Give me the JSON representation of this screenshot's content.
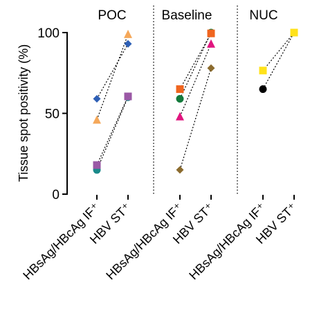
{
  "chart_data": {
    "type": "paired-dot",
    "ylabel": "Tissue spot positivity (%)",
    "ylim": [
      0,
      100
    ],
    "yticks": [
      0,
      50,
      100
    ],
    "panels": [
      {
        "title": "POC",
        "categories": [
          "HBsAg/HBcAg IF⁺",
          "HBV ST⁺"
        ],
        "series": [
          {
            "color": "#2e5fb5",
            "marker": "diamond",
            "values": [
              59,
              93
            ]
          },
          {
            "color": "#f5a85a",
            "marker": "triangle",
            "values": [
              46,
              99
            ]
          },
          {
            "color": "#1a8a8a",
            "marker": "circle",
            "values": [
              15,
              60
            ]
          },
          {
            "color": "#9b59a6",
            "marker": "square",
            "values": [
              18,
              60.5
            ]
          }
        ]
      },
      {
        "title": "Baseline",
        "categories": [
          "HBsAg/HBcAg IF⁺",
          "HBV ST⁺"
        ],
        "series": [
          {
            "color": "#8b6b2e",
            "marker": "diamond",
            "values": [
              15,
              78
            ]
          },
          {
            "color": "#e0157f",
            "marker": "triangle",
            "values": [
              48,
              93
            ]
          },
          {
            "color": "#137a3b",
            "marker": "circle",
            "values": [
              59,
              100
            ]
          },
          {
            "color": "#f0651f",
            "marker": "square",
            "values": [
              65,
              99.5
            ]
          }
        ]
      },
      {
        "title": "NUC",
        "categories": [
          "HBsAg/HBcAg IF⁺",
          "HBV ST⁺"
        ],
        "series": [
          {
            "color": "#000000",
            "marker": "circle",
            "values": [
              65,
              100
            ]
          },
          {
            "color": "#ffe21a",
            "marker": "square",
            "values": [
              76.5,
              100
            ]
          }
        ]
      }
    ]
  }
}
